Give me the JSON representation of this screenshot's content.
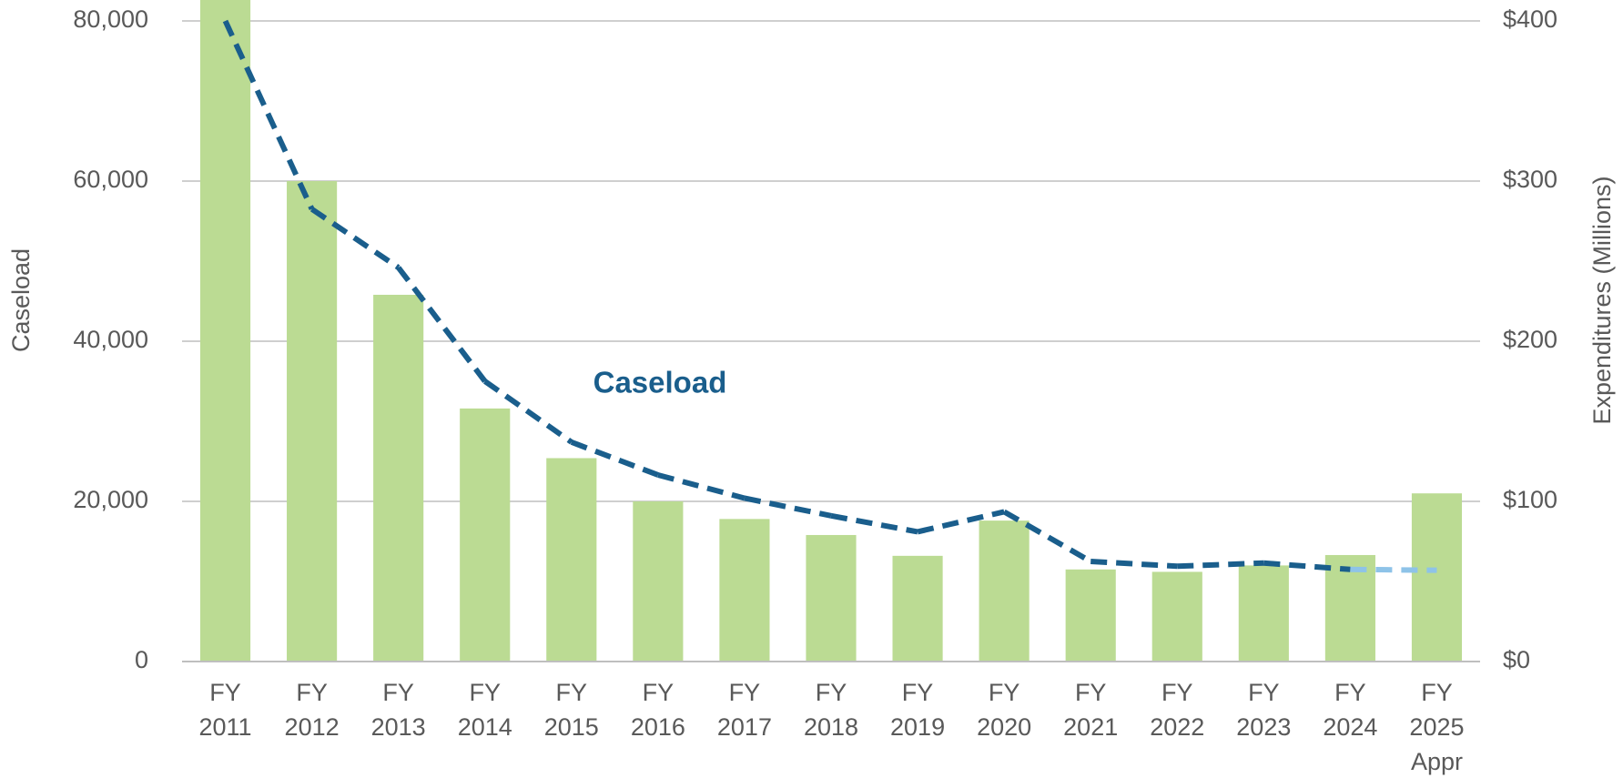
{
  "chart_data": {
    "type": "bar-line",
    "categories": [
      [
        "FY",
        "2011"
      ],
      [
        "FY",
        "2012"
      ],
      [
        "FY",
        "2013"
      ],
      [
        "FY",
        "2014"
      ],
      [
        "FY",
        "2015"
      ],
      [
        "FY",
        "2016"
      ],
      [
        "FY",
        "2017"
      ],
      [
        "FY",
        "2018"
      ],
      [
        "FY",
        "2019"
      ],
      [
        "FY",
        "2020"
      ],
      [
        "FY",
        "2021"
      ],
      [
        "FY",
        "2022"
      ],
      [
        "FY",
        "2023"
      ],
      [
        "FY",
        "2024"
      ],
      [
        "FY",
        "2025",
        "Appr"
      ]
    ],
    "y_label": "Caseload",
    "y2_label": "Expenditures (Millions)",
    "annotation": "Caseload",
    "bars": {
      "axis": "y2",
      "color": "#bbdb93",
      "values": [
        425,
        300,
        229,
        158,
        127,
        100,
        89,
        79,
        66,
        88,
        57.5,
        56,
        60,
        66.5,
        105
      ]
    },
    "line": {
      "axis": "y",
      "color": "#1a5e8c",
      "dashed": true,
      "segment_colors": [
        "#1a5e8c",
        "#1a5e8c",
        "#1a5e8c",
        "#1a5e8c",
        "#1a5e8c",
        "#1a5e8c",
        "#1a5e8c",
        "#1a5e8c",
        "#1a5e8c",
        "#1a5e8c",
        "#1a5e8c",
        "#1a5e8c",
        "#1a5e8c",
        "#8ec3e8"
      ],
      "values": [
        80000,
        56500,
        49200,
        35000,
        27400,
        23300,
        20400,
        18200,
        16200,
        18700,
        12500,
        11900,
        12300,
        11500,
        11400
      ]
    },
    "ylim": [
      0,
      80000
    ],
    "yticks": [
      0,
      {
        "value": 20000,
        "label": "20,000"
      },
      {
        "value": 40000,
        "label": "40,000"
      },
      {
        "value": 60000,
        "label": "60,000"
      },
      {
        "value": 80000,
        "label": "80,000"
      }
    ],
    "y2lim": [
      0,
      400
    ],
    "y2ticks": [
      {
        "value": 0,
        "label": "$0"
      },
      {
        "value": 100,
        "label": "$100"
      },
      {
        "value": 200,
        "label": "$200"
      },
      {
        "value": 300,
        "label": "$300"
      },
      {
        "value": 400,
        "label": "$400"
      }
    ],
    "grid": true
  }
}
